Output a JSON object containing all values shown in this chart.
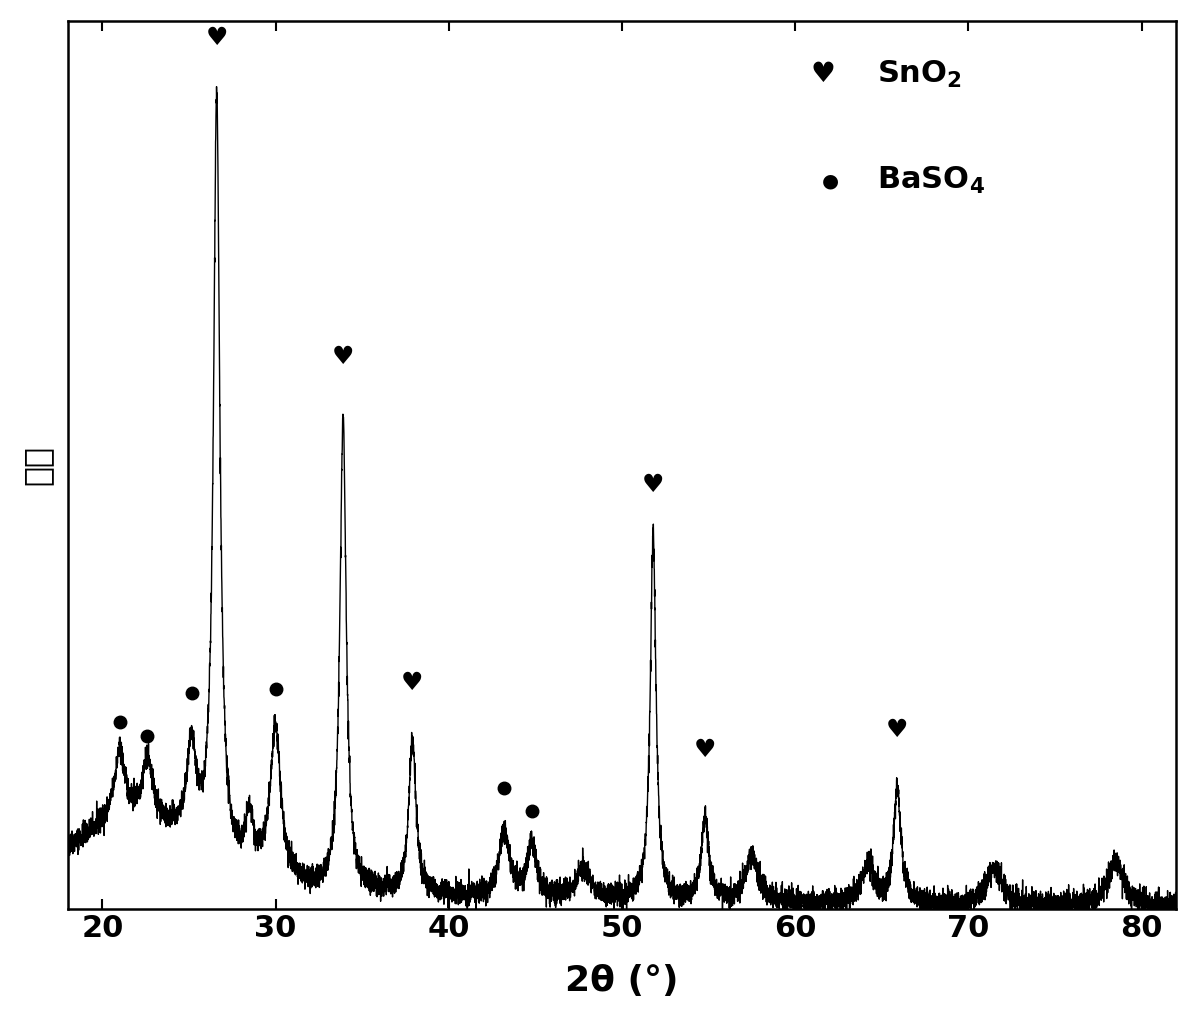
{
  "xlabel": "2θ (°)",
  "ylabel": "强度",
  "xlim": [
    18,
    82
  ],
  "ylim": [
    0,
    1.08
  ],
  "xticks": [
    20,
    30,
    40,
    50,
    60,
    70,
    80
  ],
  "background_color": "#ffffff",
  "line_color": "#000000",
  "sno2_peak_positions": [
    26.6,
    33.9,
    37.9,
    51.8,
    54.8,
    65.9
  ],
  "sno2_marker_offsets": [
    0.07,
    0.07,
    0.07,
    0.07,
    0.07,
    0.07
  ],
  "baso4_peak_positions": [
    21.0,
    22.6,
    25.15,
    30.0,
    43.2,
    44.8
  ],
  "baso4_marker_offsets": [
    0.04,
    0.04,
    0.04,
    0.04,
    0.04,
    0.04
  ],
  "noise_amplitude": 0.008,
  "base_level": 0.04
}
